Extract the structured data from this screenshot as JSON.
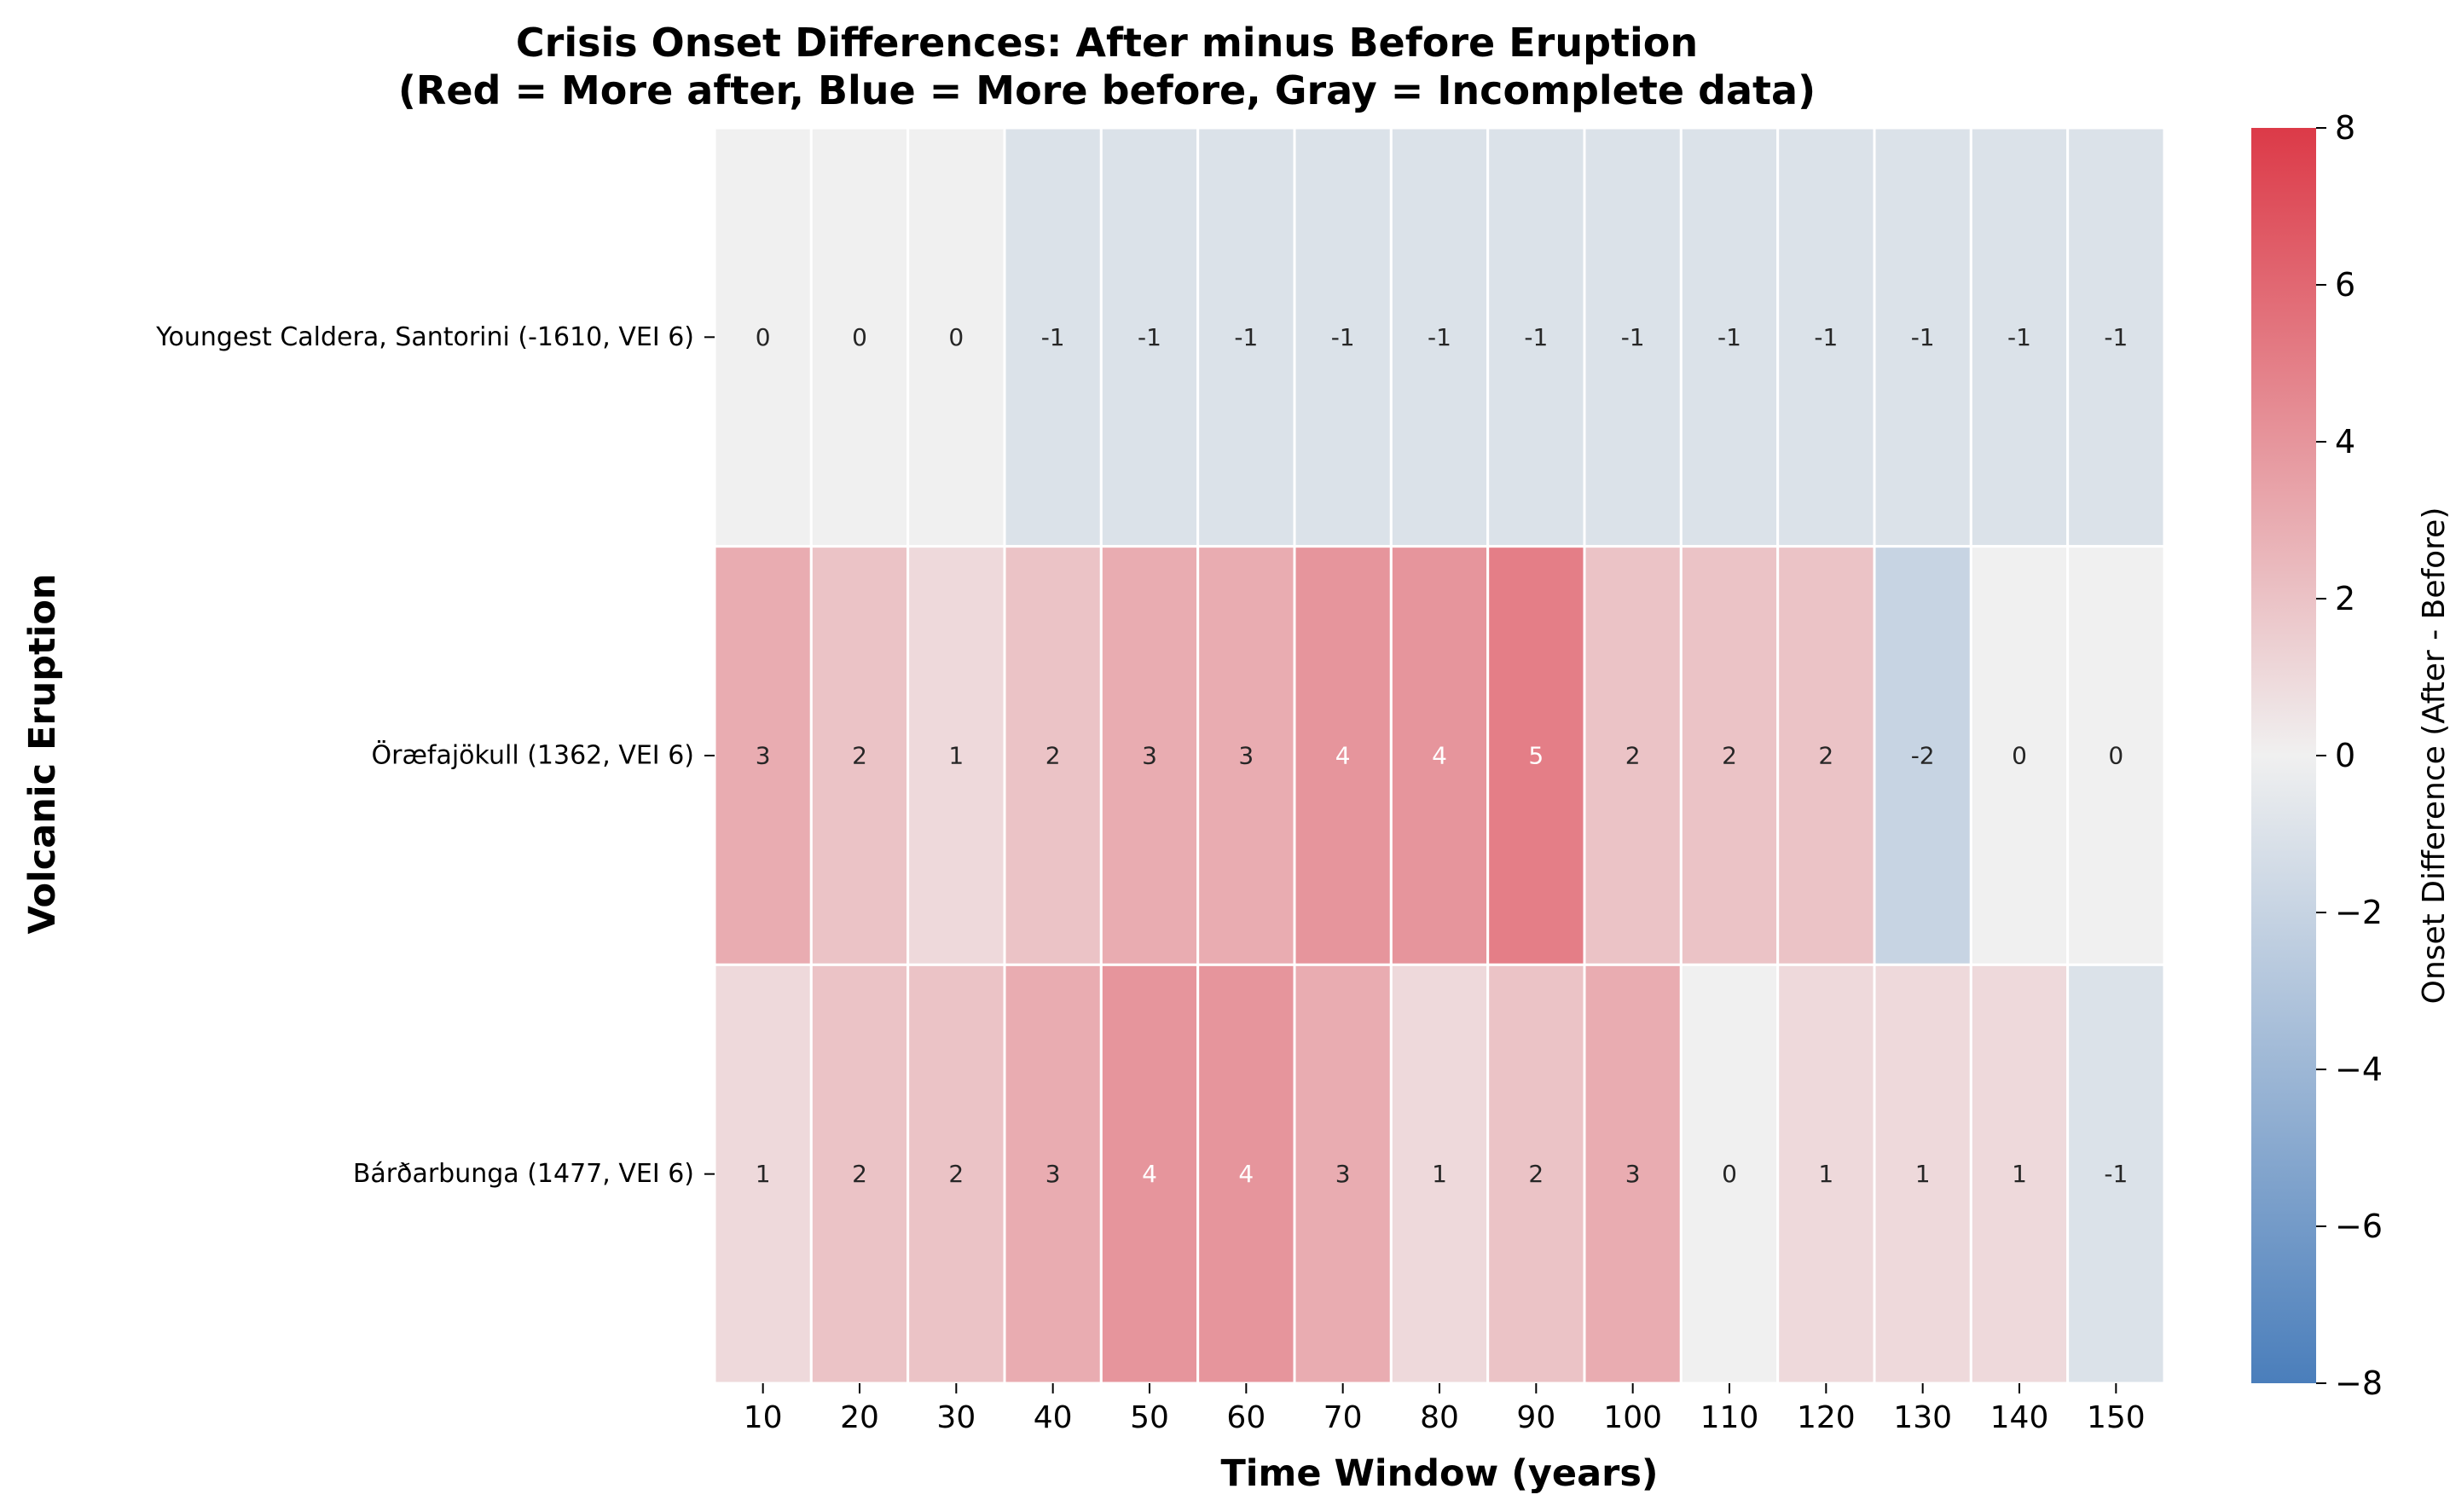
{
  "chart_data": {
    "type": "heatmap",
    "title": "Crisis Onset Differences: After minus Before Eruption",
    "subtitle": "(Red = More after, Blue = More before, Gray = Incomplete data)",
    "xlabel": "Time Window (years)",
    "ylabel": "Volcanic Eruption",
    "x_categories": [
      "10",
      "20",
      "30",
      "40",
      "50",
      "60",
      "70",
      "80",
      "90",
      "100",
      "110",
      "120",
      "130",
      "140",
      "150"
    ],
    "y_categories": [
      "Youngest Caldera, Santorini  (-1610, VEI 6)",
      "Öræfajökull  (1362, VEI 6)",
      "Bárðarbunga  (1477, VEI 6)"
    ],
    "values": [
      [
        0,
        0,
        0,
        -1,
        -1,
        -1,
        -1,
        -1,
        -1,
        -1,
        -1,
        -1,
        -1,
        -1,
        -1
      ],
      [
        3,
        2,
        1,
        2,
        3,
        3,
        4,
        4,
        5,
        2,
        2,
        2,
        -2,
        0,
        0
      ],
      [
        1,
        2,
        2,
        3,
        4,
        4,
        3,
        1,
        2,
        3,
        0,
        1,
        1,
        1,
        -1
      ]
    ],
    "colorbar": {
      "label": "Onset Difference (After - Before)",
      "range": [
        -8,
        8
      ],
      "ticks": [
        "8",
        "6",
        "4",
        "2",
        "0",
        "−2",
        "−4",
        "−6",
        "−8"
      ],
      "tick_values": [
        8,
        6,
        4,
        2,
        0,
        -2,
        -4,
        -6,
        -8
      ],
      "low_color": "#4a7ebb",
      "mid_color": "#f0f0f0",
      "high_color": "#dc3a48"
    },
    "grid": false
  }
}
